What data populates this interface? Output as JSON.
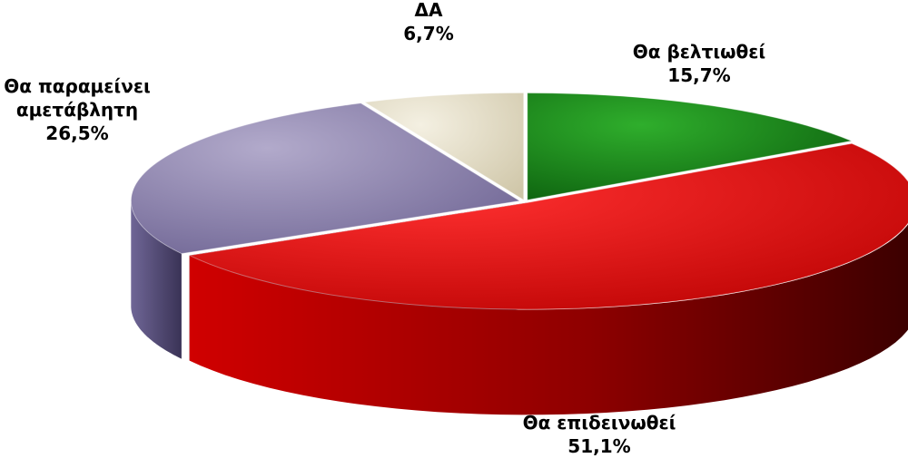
{
  "chart_data": {
    "type": "pie",
    "title": "",
    "categories": [
      "Θα βελτιωθεί",
      "Θα επιδεινωθεί",
      "Θα παραμείνει αμετάβλητη",
      "ΔΑ"
    ],
    "values": [
      15.7,
      51.1,
      26.5,
      6.7
    ],
    "value_labels": [
      "15,7%",
      "51,1%",
      "26,5%",
      "6,7%"
    ],
    "label_lines": [
      [
        "Θα βελτιωθεί"
      ],
      [
        "Θα επιδεινωθεί"
      ],
      [
        "Θα παραμείνει",
        "αμετάβλητη"
      ],
      [
        "ΔΑ"
      ]
    ],
    "colors": [
      "#0f7a12",
      "#e01010",
      "#8a80aa",
      "#e6e0cc"
    ],
    "style": "3d-exploded",
    "legend": "none"
  }
}
